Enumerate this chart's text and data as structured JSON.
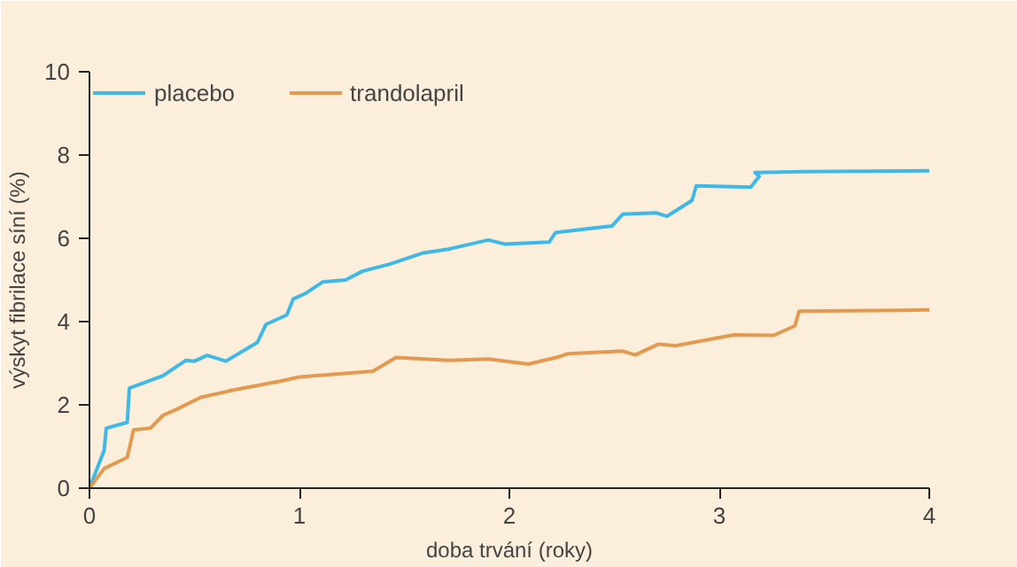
{
  "chart_data": {
    "type": "line",
    "xlabel": "doba trvání (roky)",
    "ylabel": "výskyt fibrilace síní (%)",
    "xlim": [
      0,
      4
    ],
    "ylim": [
      0,
      10
    ],
    "xticks": [
      0,
      1,
      2,
      3,
      4
    ],
    "yticks": [
      0,
      2,
      4,
      6,
      8,
      10
    ],
    "grid": false,
    "legend": "top left",
    "marker": "none",
    "line_style": "solid",
    "series": [
      {
        "name": "placebo",
        "color": "#3fb8e8",
        "x": [
          0,
          0.07,
          0.08,
          0.18,
          0.19,
          0.35,
          0.46,
          0.5,
          0.56,
          0.65,
          0.8,
          0.84,
          0.94,
          0.97,
          1.03,
          1.11,
          1.22,
          1.3,
          1.43,
          1.59,
          1.71,
          1.9,
          1.98,
          2.19,
          2.22,
          2.49,
          2.54,
          2.7,
          2.75,
          2.87,
          2.89,
          3.15,
          3.19,
          3.17,
          3.4,
          4.0
        ],
        "values": [
          0,
          0.91,
          1.44,
          1.58,
          2.4,
          2.7,
          3.07,
          3.05,
          3.19,
          3.05,
          3.5,
          3.93,
          4.16,
          4.54,
          4.68,
          4.95,
          5.0,
          5.21,
          5.38,
          5.65,
          5.74,
          5.96,
          5.86,
          5.91,
          6.14,
          6.3,
          6.58,
          6.61,
          6.53,
          6.91,
          7.26,
          7.23,
          7.49,
          7.58,
          7.6,
          7.62
        ]
      },
      {
        "name": "trandolapril",
        "color": "#e39a50",
        "x": [
          0,
          0.07,
          0.18,
          0.21,
          0.29,
          0.35,
          0.41,
          0.53,
          0.68,
          0.92,
          1.0,
          1.35,
          1.46,
          1.71,
          1.9,
          2.09,
          2.24,
          2.28,
          2.54,
          2.6,
          2.71,
          2.79,
          3.07,
          3.26,
          3.36,
          3.38,
          4.0
        ],
        "values": [
          0,
          0.47,
          0.74,
          1.4,
          1.44,
          1.75,
          1.88,
          2.18,
          2.35,
          2.58,
          2.67,
          2.81,
          3.14,
          3.07,
          3.1,
          2.98,
          3.16,
          3.23,
          3.29,
          3.2,
          3.46,
          3.42,
          3.68,
          3.67,
          3.9,
          4.25,
          4.28
        ]
      }
    ]
  }
}
